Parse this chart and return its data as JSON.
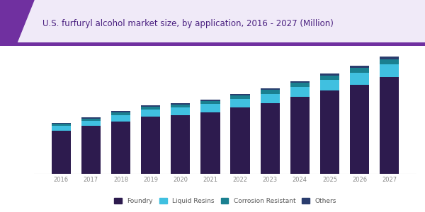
{
  "title": "U.S. furfuryl alcohol market size, by application, 2016 - 2027 (Million)",
  "years": [
    "2016",
    "2017",
    "2018",
    "2019",
    "2020",
    "2021",
    "2022",
    "2023",
    "2024",
    "2025",
    "2026",
    "2027"
  ],
  "segments": {
    "Foundry": [
      28,
      31,
      34,
      37,
      38,
      40,
      43,
      46,
      50,
      54,
      58,
      63
    ],
    "Liquid Resins": [
      3.2,
      3.6,
      4.2,
      4.6,
      4.9,
      5.2,
      5.6,
      6.0,
      6.5,
      7.0,
      7.6,
      8.2
    ],
    "Corrosion Resistant": [
      1.2,
      1.4,
      1.6,
      1.8,
      1.9,
      2.0,
      2.2,
      2.4,
      2.6,
      2.8,
      3.0,
      3.3
    ],
    "Others": [
      0.6,
      0.7,
      0.8,
      0.9,
      0.9,
      1.0,
      1.0,
      1.1,
      1.2,
      1.3,
      1.4,
      1.5
    ]
  },
  "colors": [
    "#2d1b4e",
    "#40c0e0",
    "#1a8090",
    "#2a3d6e"
  ],
  "background_color": "#ffffff",
  "plot_bg_color": "#ffffff",
  "title_color": "#4a2080",
  "title_bg_color": "#f0eaf8",
  "bar_width": 0.65,
  "legend_labels": [
    "Foundry",
    "Liquid Resins",
    "Corrosion Resistant",
    "Others"
  ],
  "legend_colors": [
    "#2d1b4e",
    "#40c0e0",
    "#1a8090",
    "#2a3d6e"
  ],
  "header_line_color": "#7030a0",
  "bottom_line_color": "#cccccc"
}
